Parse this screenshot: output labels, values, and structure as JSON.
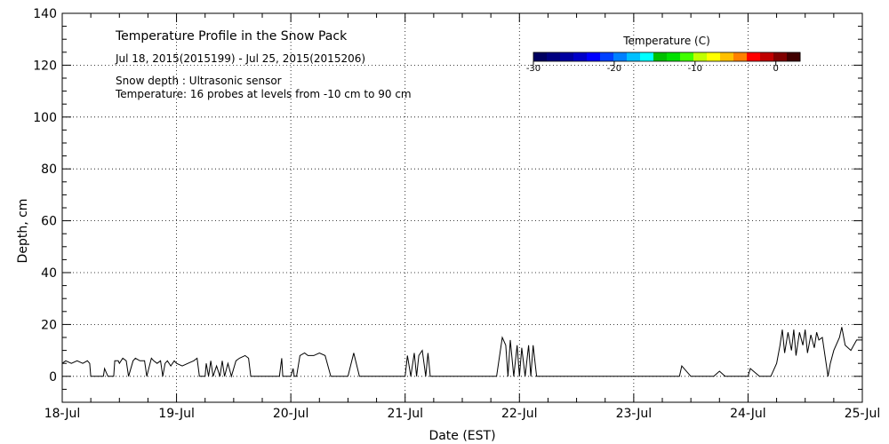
{
  "chart_data": {
    "type": "line",
    "title": "Temperature Profile in the Snow Pack",
    "subtitle": "Jul 18, 2015(2015199) - Jul 25, 2015(2015206)",
    "notes": [
      "Snow depth : Ultrasonic sensor",
      "Temperature: 16 probes at levels from -10 cm to 90 cm"
    ],
    "xlabel": "Date (EST)",
    "ylabel": "Depth, cm",
    "xlim": [
      0,
      7
    ],
    "ylim": [
      -10,
      140
    ],
    "x_tick_labels": [
      "18-Jul",
      "19-Jul",
      "20-Jul",
      "21-Jul",
      "22-Jul",
      "23-Jul",
      "24-Jul",
      "25-Jul"
    ],
    "y_ticks": [
      0,
      20,
      40,
      60,
      80,
      100,
      120,
      140
    ],
    "grid": "dotted",
    "colorbar": {
      "title": "Temperature (C)",
      "range": [
        -30,
        3
      ],
      "tick_labels": [
        "-30",
        "-20",
        "-10",
        "0"
      ],
      "colors": [
        "#000060",
        "#000080",
        "#0000a0",
        "#0000c8",
        "#0000ff",
        "#0040ff",
        "#0080ff",
        "#00c0ff",
        "#00ffff",
        "#00c000",
        "#00e000",
        "#40ff00",
        "#c0ff00",
        "#ffff00",
        "#ffc000",
        "#ff8000",
        "#ff0000",
        "#c00000",
        "#800000",
        "#400000"
      ]
    },
    "series": [
      {
        "x_unit": "days since 18-Jul 00:00",
        "segments": [
          {
            "x": [
              0,
              0.03,
              0.08,
              0.13,
              0.18,
              0.22,
              0.24,
              0.25,
              0.27,
              0.3,
              0.36,
              0.37,
              0.4,
              0.41,
              0.42,
              0.45,
              0.46,
              0.49,
              0.5,
              0.53,
              0.56,
              0.58,
              0.62,
              0.64,
              0.68,
              0.72,
              0.74,
              0.78,
              0.8,
              0.83,
              0.86,
              0.88,
              0.9,
              0.92,
              0.95,
              0.98,
              1.0,
              1.05,
              1.1,
              1.15,
              1.18,
              1.2
            ],
            "y": [
              5,
              6,
              5,
              6,
              5,
              6,
              5,
              0,
              0,
              0,
              0,
              3,
              0,
              0,
              0,
              0,
              6,
              6,
              5,
              7,
              6,
              0,
              6,
              7,
              6,
              6,
              0,
              7,
              6,
              5,
              6,
              0,
              5,
              6,
              4,
              6,
              5,
              4,
              5,
              6,
              7,
              0
            ]
          },
          {
            "x": [
              1.2,
              1.25,
              1.26,
              1.28,
              1.3,
              1.32,
              1.35,
              1.38,
              1.4,
              1.42,
              1.45,
              1.48,
              1.52,
              1.55,
              1.6,
              1.63,
              1.65,
              1.68,
              1.7,
              1.72,
              1.75,
              1.8,
              1.85,
              1.9,
              1.92,
              1.93,
              1.95,
              2.0,
              2.02,
              2.03,
              2.05,
              2.08,
              2.12,
              2.15,
              2.2,
              2.25,
              2.3,
              2.35,
              2.4,
              2.42,
              2.45,
              2.5
            ],
            "y": [
              0,
              0,
              5,
              0,
              6,
              0,
              4,
              0,
              6,
              0,
              5,
              0,
              6,
              7,
              8,
              7,
              0,
              0,
              0,
              0,
              0,
              0,
              0,
              0,
              7,
              0,
              0,
              0,
              3,
              0,
              0,
              8,
              9,
              8,
              8,
              9,
              8,
              0,
              0,
              0,
              0,
              0
            ]
          },
          {
            "x": [
              2.5,
              2.55,
              2.6,
              2.7,
              2.8,
              2.9,
              3.0,
              3.02,
              3.05,
              3.08,
              3.1,
              3.12,
              3.15,
              3.18,
              3.2,
              3.22,
              3.25,
              3.3,
              3.4,
              3.5,
              3.6,
              3.7,
              3.8,
              3.85,
              3.88,
              3.9,
              3.92,
              3.95,
              3.98,
              4.0,
              4.02,
              4.05,
              4.08,
              4.1,
              4.12,
              4.15,
              4.2,
              4.3,
              4.4,
              4.5,
              4.6,
              4.7
            ],
            "y": [
              0,
              9,
              0,
              0,
              0,
              0,
              0,
              8,
              0,
              9,
              0,
              8,
              10,
              0,
              9,
              0,
              0,
              0,
              0,
              0,
              0,
              0,
              0,
              15,
              12,
              0,
              14,
              0,
              12,
              0,
              11,
              0,
              12,
              0,
              12,
              0,
              0,
              0,
              0,
              0,
              0,
              0
            ]
          },
          {
            "x": [
              4.7,
              4.8,
              5.0,
              5.1,
              5.2,
              5.3,
              5.4,
              5.42,
              5.5,
              5.6,
              5.7,
              5.75,
              5.8,
              5.9,
              6.0,
              6.02,
              6.1,
              6.2,
              6.25,
              6.28,
              6.3,
              6.32,
              6.35,
              6.38,
              6.4,
              6.42,
              6.45,
              6.48,
              6.5,
              6.52,
              6.55,
              6.58,
              6.6,
              6.62,
              6.65,
              6.7,
              6.72,
              6.75,
              6.8,
              6.82,
              6.85,
              6.9,
              6.95,
              7.0
            ],
            "y": [
              0,
              0,
              0,
              0,
              0,
              0,
              0,
              4,
              0,
              0,
              0,
              2,
              0,
              0,
              0,
              3,
              0,
              0,
              5,
              12,
              18,
              9,
              17,
              10,
              18,
              8,
              17,
              12,
              18,
              9,
              16,
              11,
              17,
              14,
              15,
              0,
              5,
              10,
              15,
              19,
              12,
              10,
              14,
              14
            ]
          }
        ]
      }
    ]
  }
}
